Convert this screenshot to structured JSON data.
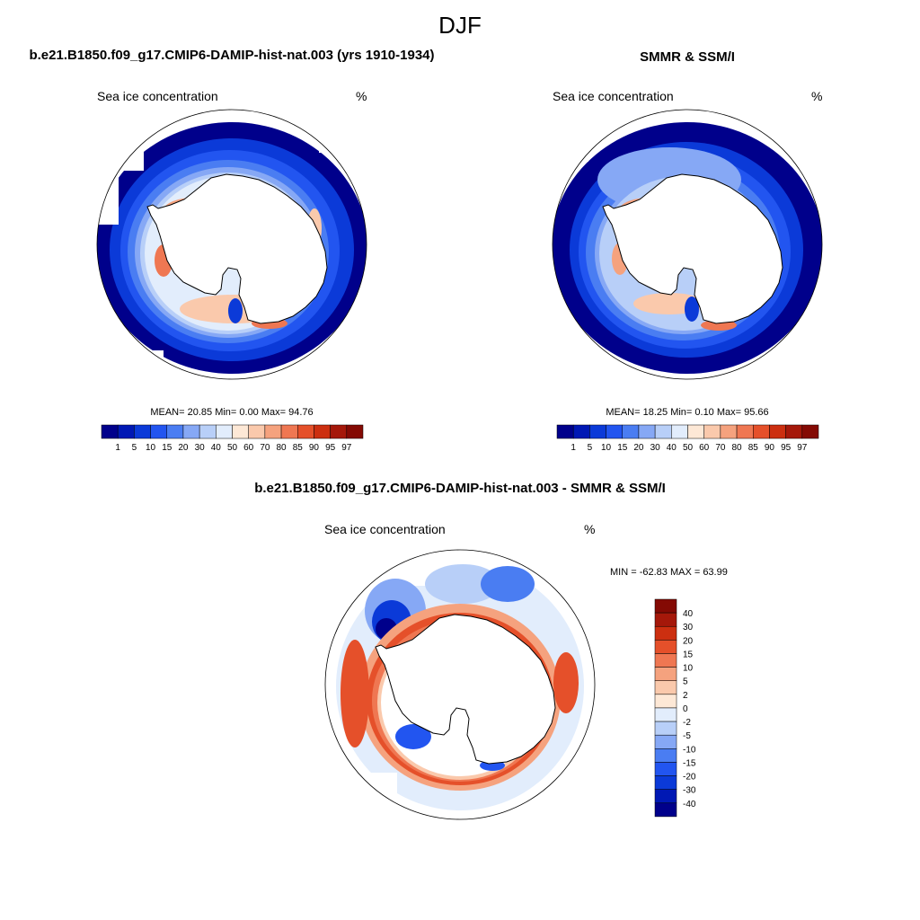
{
  "figure": {
    "title": "DJF"
  },
  "panels": [
    {
      "id": "model",
      "title": "b.e21.B1850.f09_g17.CMIP6-DAMIP-hist-nat.003 (yrs 1910-1934)",
      "left_label": "Sea ice concentration",
      "right_label": "%",
      "stats": "MEAN=  20.85  Min=   0.00  Max=  94.76"
    },
    {
      "id": "obs",
      "title": "SMMR & SSM/I",
      "left_label": "Sea ice concentration",
      "right_label": "%",
      "stats": "MEAN=  18.25  Min=   0.10  Max=  95.66"
    },
    {
      "id": "diff",
      "title": "b.e21.B1850.f09_g17.CMIP6-DAMIP-hist-nat.003 - SMMR & SSM/I",
      "left_label": "Sea ice concentration",
      "right_label": "%",
      "stats": "MIN = -62.83 MAX =  63.99"
    }
  ],
  "colorbars": {
    "concentration": {
      "labels": [
        "1",
        "5",
        "10",
        "15",
        "20",
        "30",
        "40",
        "50",
        "60",
        "70",
        "80",
        "85",
        "90",
        "95",
        "97"
      ],
      "colors": [
        "#00008b",
        "#0018b4",
        "#0b3ad8",
        "#2255f0",
        "#4a7df2",
        "#86a8f5",
        "#b8cff8",
        "#e2edfc",
        "#fde8d6",
        "#fac9ac",
        "#f5a27e",
        "#ef7752",
        "#e5502a",
        "#cc2f10",
        "#a5180a",
        "#840a04"
      ]
    },
    "difference": {
      "labels": [
        "40",
        "30",
        "20",
        "15",
        "10",
        "5",
        "2",
        "0",
        "-2",
        "-5",
        "-10",
        "-15",
        "-20",
        "-30",
        "-40"
      ],
      "colors": [
        "#840a04",
        "#a5180a",
        "#cc2f10",
        "#e5502a",
        "#ef7752",
        "#f5a27e",
        "#fac9ac",
        "#fde8d6",
        "#e2edfc",
        "#b8cff8",
        "#86a8f5",
        "#4a7df2",
        "#2255f0",
        "#0b3ad8",
        "#0018b4",
        "#00008b"
      ]
    }
  }
}
